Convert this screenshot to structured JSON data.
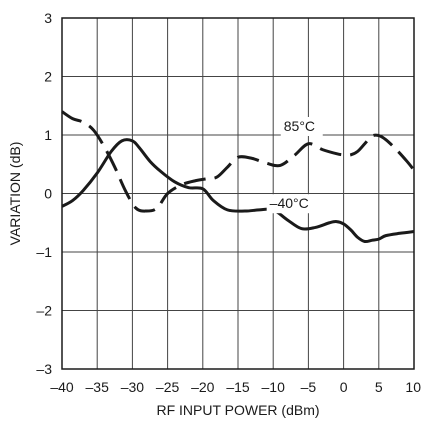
{
  "chart_data": {
    "type": "line",
    "title": "",
    "xlabel": "RF INPUT POWER (dBm)",
    "ylabel": "VARIATION (dB)",
    "xlim": [
      -40,
      10
    ],
    "ylim": [
      -3,
      3
    ],
    "xticks": [
      -40,
      -35,
      -30,
      -25,
      -20,
      -15,
      -10,
      -5,
      0,
      5,
      10
    ],
    "xtick_labels": [
      "–40",
      "–35",
      "–30",
      "–25",
      "–20",
      "–15",
      "–10",
      "–5",
      "0",
      "5",
      "10"
    ],
    "yticks": [
      -3,
      -2,
      -1,
      0,
      1,
      2,
      3
    ],
    "ytick_labels": [
      "–3",
      "–2",
      "–1",
      "0",
      "1",
      "2",
      "3"
    ],
    "grid": true,
    "series": [
      {
        "label_text": "–40°C",
        "line_style": "solid",
        "color": "#1a1a1a",
        "x": [
          -40,
          -38.5,
          -37,
          -35,
          -33,
          -31.5,
          -30,
          -29,
          -27.5,
          -26,
          -24,
          -22,
          -20,
          -18.5,
          -16.5,
          -14,
          -12,
          -10,
          -8,
          -6,
          -4,
          -2,
          -1,
          0,
          1,
          2,
          3,
          4,
          5,
          6,
          8,
          10
        ],
        "y": [
          -0.22,
          -0.12,
          0.05,
          0.35,
          0.72,
          0.9,
          0.9,
          0.78,
          0.55,
          0.38,
          0.2,
          0.1,
          0.08,
          -0.12,
          -0.28,
          -0.3,
          -0.28,
          -0.28,
          -0.45,
          -0.6,
          -0.58,
          -0.5,
          -0.48,
          -0.52,
          -0.62,
          -0.75,
          -0.82,
          -0.8,
          -0.78,
          -0.72,
          -0.68,
          -0.65
        ]
      },
      {
        "label_text": "85°C",
        "line_style": "dashed",
        "color": "#1a1a1a",
        "x": [
          -40,
          -38.5,
          -37,
          -35.5,
          -34,
          -32.5,
          -31,
          -29.5,
          -28,
          -26.5,
          -25,
          -23,
          -21,
          -19.5,
          -18,
          -16.5,
          -15,
          -13,
          -11,
          -9,
          -7,
          -5,
          -3,
          -1,
          0,
          1,
          2,
          3,
          4,
          5,
          6,
          7.5,
          9,
          10
        ],
        "y": [
          1.4,
          1.28,
          1.22,
          1.08,
          0.8,
          0.45,
          0.05,
          -0.25,
          -0.3,
          -0.25,
          0.0,
          0.15,
          0.22,
          0.25,
          0.28,
          0.45,
          0.62,
          0.6,
          0.52,
          0.48,
          0.65,
          0.85,
          0.75,
          0.68,
          0.66,
          0.66,
          0.72,
          0.85,
          0.98,
          0.99,
          0.92,
          0.75,
          0.55,
          0.4
        ]
      }
    ],
    "annotations": [
      {
        "text": "85°C",
        "series": 1
      },
      {
        "text": "–40°C",
        "series": 0
      }
    ]
  }
}
